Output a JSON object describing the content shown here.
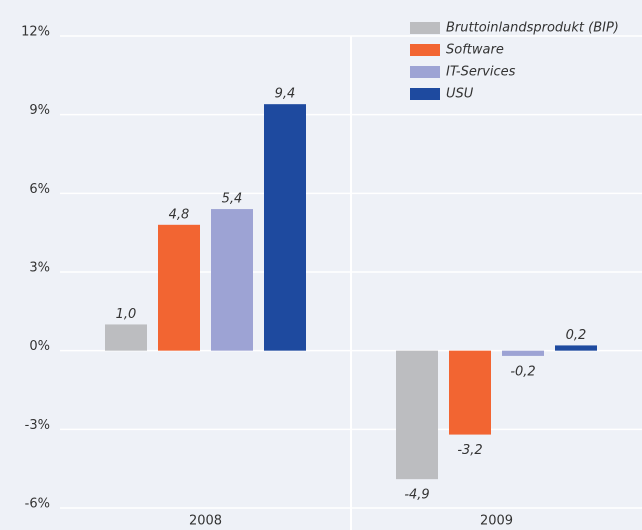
{
  "chart_data": {
    "type": "bar",
    "categories": [
      "2008",
      "2009"
    ],
    "series": [
      {
        "name": "Bruttoinlandsprodukt (BIP)",
        "color": "#bcbdc0",
        "values": [
          1.0,
          -4.9
        ],
        "value_labels": [
          "1,0",
          "-4,9"
        ]
      },
      {
        "name": "Software",
        "color": "#f26532",
        "values": [
          4.8,
          -3.2
        ],
        "value_labels": [
          "4,8",
          "-3,2"
        ]
      },
      {
        "name": "IT-Services",
        "color": "#9da3d4",
        "values": [
          5.4,
          -0.2
        ],
        "value_labels": [
          "5,4",
          "-0,2"
        ]
      },
      {
        "name": "USU",
        "color": "#1e4a9f",
        "values": [
          9.4,
          0.2
        ],
        "value_labels": [
          "9,4",
          "0,2"
        ]
      }
    ],
    "ylim": [
      -6,
      12
    ],
    "yticks": [
      {
        "value": -6,
        "label": "-6%"
      },
      {
        "value": -3,
        "label": "-3%"
      },
      {
        "value": 0,
        "label": "0%"
      },
      {
        "value": 3,
        "label": "3%"
      },
      {
        "value": 6,
        "label": "6%"
      },
      {
        "value": 9,
        "label": "9%"
      },
      {
        "value": 12,
        "label": "12%"
      }
    ],
    "grid": true,
    "legend": "top-right"
  }
}
